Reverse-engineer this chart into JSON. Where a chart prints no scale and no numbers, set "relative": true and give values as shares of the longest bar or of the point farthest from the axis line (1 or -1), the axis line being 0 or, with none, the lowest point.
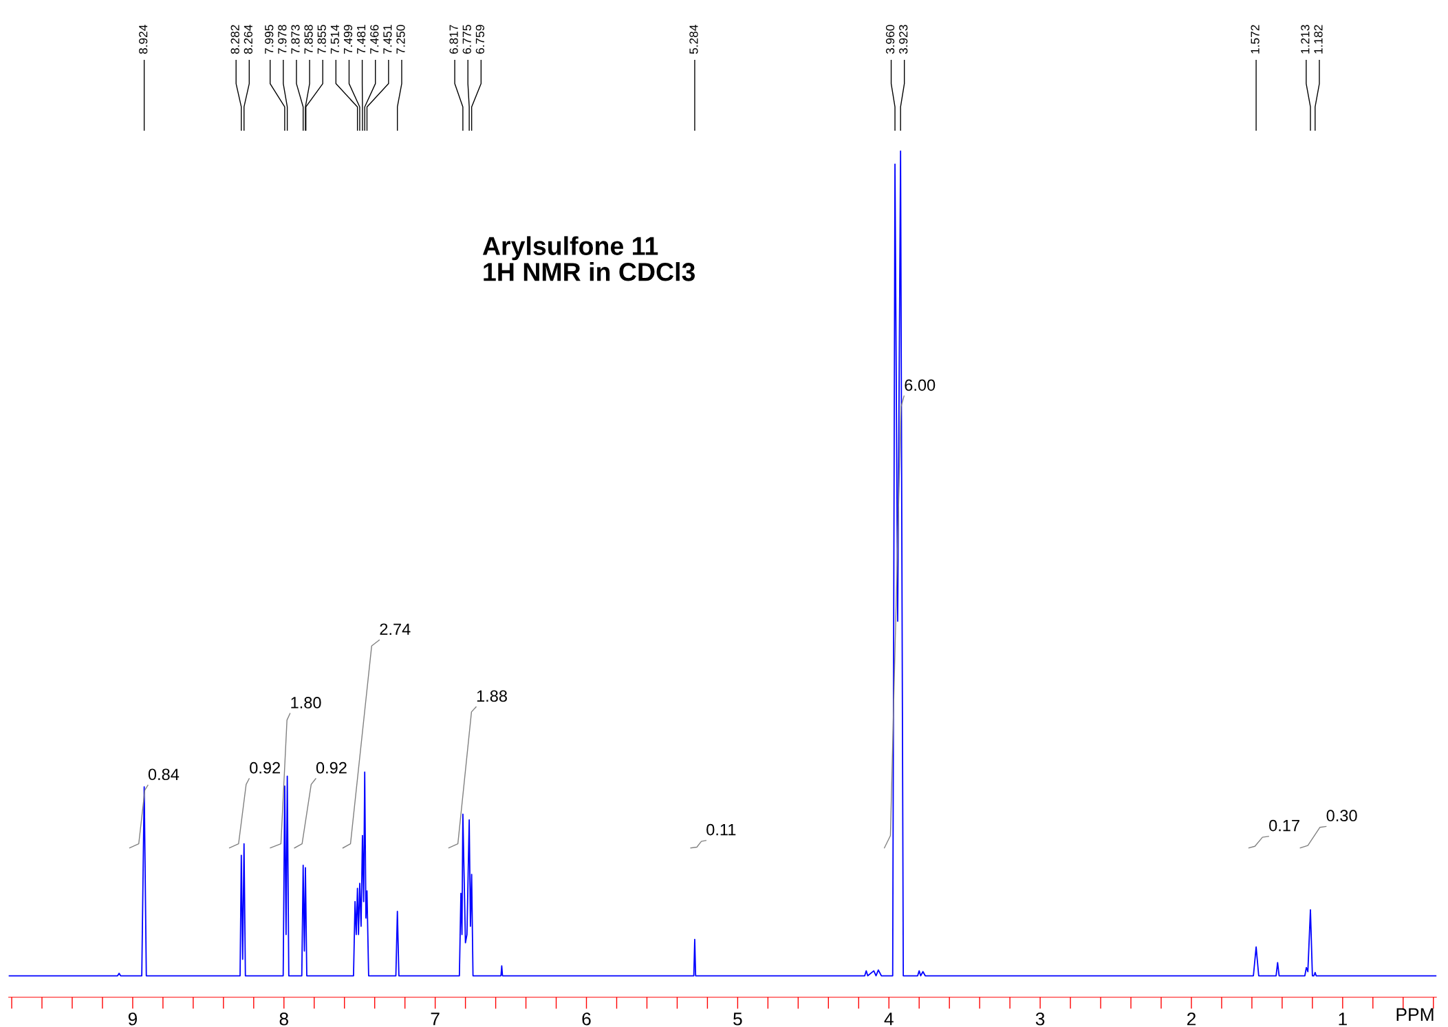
{
  "chart_data": {
    "type": "line",
    "title": "Arylsulfone 11\n1H NMR in CDCl3",
    "xlabel": "PPM",
    "relative": true,
    "grid": false,
    "legend": false,
    "tick_labels": "x",
    "marker": "none",
    "line_style": "solid",
    "xlim": [
      9.82,
      0.38
    ],
    "xticks": [
      9,
      8,
      7,
      6,
      5,
      4,
      3,
      2,
      1
    ],
    "series": [
      {
        "type": "line",
        "color": "#0000ff",
        "x": [
          9.82,
          9.1,
          9.09,
          9.08,
          8.94,
          8.924,
          8.91,
          8.29,
          8.282,
          8.273,
          8.264,
          8.255,
          8.005,
          7.995,
          7.986,
          7.978,
          7.968,
          7.882,
          7.873,
          7.865,
          7.858,
          7.849,
          7.54,
          7.53,
          7.522,
          7.514,
          7.507,
          7.499,
          7.49,
          7.481,
          7.473,
          7.466,
          7.458,
          7.451,
          7.44,
          7.26,
          7.25,
          7.24,
          6.84,
          6.83,
          6.823,
          6.817,
          6.8,
          6.79,
          6.775,
          6.767,
          6.759,
          6.75,
          6.565,
          6.56,
          6.555,
          5.29,
          5.284,
          5.278,
          4.16,
          4.15,
          4.14,
          4.1,
          4.085,
          4.07,
          4.05,
          3.975,
          3.96,
          3.942,
          3.923,
          3.905,
          3.81,
          3.8,
          3.79,
          3.775,
          3.76,
          1.59,
          1.572,
          1.555,
          1.44,
          1.43,
          1.42,
          1.25,
          1.24,
          1.23,
          1.213,
          1.2,
          1.19,
          1.182,
          1.175,
          0.38
        ],
        "values": [
          0,
          0,
          0.003,
          0,
          0,
          0.229,
          0,
          0,
          0.146,
          0.02,
          0.16,
          0,
          0,
          0.23,
          0.05,
          0.242,
          0,
          0,
          0.134,
          0.03,
          0.131,
          0,
          0,
          0.09,
          0.05,
          0.106,
          0.05,
          0.112,
          0.06,
          0.17,
          0.09,
          0.247,
          0.07,
          0.103,
          0,
          0,
          0.078,
          0,
          0,
          0.1,
          0.05,
          0.196,
          0.04,
          0.05,
          0.189,
          0.06,
          0.123,
          0,
          0,
          0.012,
          0,
          0,
          0.044,
          0,
          0,
          0.006,
          0,
          0.006,
          0,
          0.007,
          0,
          0,
          0.984,
          0.43,
          1.0,
          0,
          0,
          0.006,
          0,
          0.005,
          0,
          0,
          0.035,
          0,
          0,
          0.016,
          0,
          0,
          0.01,
          0.005,
          0.08,
          0,
          0,
          0.004,
          0,
          0
        ]
      },
      {
        "color": "#808080",
        "x": [
          9.02,
          8.96,
          8.92,
          8.9,
          null,
          8.36,
          8.3,
          8.25,
          8.23,
          null,
          8.09,
          8.02,
          7.98,
          7.96,
          null,
          7.93,
          7.88,
          7.82,
          7.79,
          null,
          7.61,
          7.56,
          7.42,
          7.37,
          null,
          6.91,
          6.85,
          6.76,
          6.73,
          null,
          5.31,
          5.27,
          5.24,
          5.21,
          null,
          4.03,
          3.99,
          3.92,
          3.9,
          null,
          1.62,
          1.58,
          1.53,
          1.49,
          null,
          1.28,
          1.23,
          1.15,
          1.11
        ],
        "values": [
          0.155,
          0.16,
          0.225,
          0.231,
          null,
          0.155,
          0.16,
          0.232,
          0.239,
          null,
          0.155,
          0.16,
          0.31,
          0.318,
          null,
          0.155,
          0.16,
          0.232,
          0.239,
          null,
          0.155,
          0.16,
          0.4,
          0.407,
          null,
          0.155,
          0.16,
          0.32,
          0.326,
          null,
          0.155,
          0.156,
          0.163,
          0.164,
          null,
          0.155,
          0.17,
          0.69,
          0.703,
          null,
          0.155,
          0.157,
          0.168,
          0.169,
          null,
          0.155,
          0.158,
          0.18,
          0.181
        ]
      }
    ],
    "annotations": [
      {
        "text": "8.924",
        "x": 8.924
      },
      {
        "text": "8.282",
        "x": 8.282
      },
      {
        "text": "8.264",
        "x": 8.264
      },
      {
        "text": "7.995",
        "x": 7.995
      },
      {
        "text": "7.978",
        "x": 7.978
      },
      {
        "text": "7.873",
        "x": 7.873
      },
      {
        "text": "7.858",
        "x": 7.858
      },
      {
        "text": "7.855",
        "x": 7.855
      },
      {
        "text": "7.514",
        "x": 7.514
      },
      {
        "text": "7.499",
        "x": 7.499
      },
      {
        "text": "7.481",
        "x": 7.481
      },
      {
        "text": "7.466",
        "x": 7.466
      },
      {
        "text": "7.451",
        "x": 7.451
      },
      {
        "text": "7.250",
        "x": 7.25
      },
      {
        "text": "6.817",
        "x": 6.817
      },
      {
        "text": "6.775",
        "x": 6.775
      },
      {
        "text": "6.759",
        "x": 6.759
      },
      {
        "text": "5.284",
        "x": 5.284
      },
      {
        "text": "3.960",
        "x": 3.96
      },
      {
        "text": "3.923",
        "x": 3.923
      },
      {
        "text": "1.572",
        "x": 1.572
      },
      {
        "text": "1.213",
        "x": 1.213
      },
      {
        "text": "1.182",
        "x": 1.182
      },
      {
        "text": "0.84",
        "x": 8.9,
        "y": 0.231
      },
      {
        "text": "0.92",
        "x": 8.23,
        "y": 0.239
      },
      {
        "text": "1.80",
        "x": 7.96,
        "y": 0.318
      },
      {
        "text": "0.92",
        "x": 7.79,
        "y": 0.239
      },
      {
        "text": "2.74",
        "x": 7.37,
        "y": 0.407
      },
      {
        "text": "1.88",
        "x": 6.73,
        "y": 0.326
      },
      {
        "text": "0.11",
        "x": 5.21,
        "y": 0.164
      },
      {
        "text": "6.00",
        "x": 3.9,
        "y": 0.703
      },
      {
        "text": "0.17",
        "x": 1.49,
        "y": 0.169
      },
      {
        "text": "0.30",
        "x": 1.11,
        "y": 0.181
      }
    ]
  }
}
